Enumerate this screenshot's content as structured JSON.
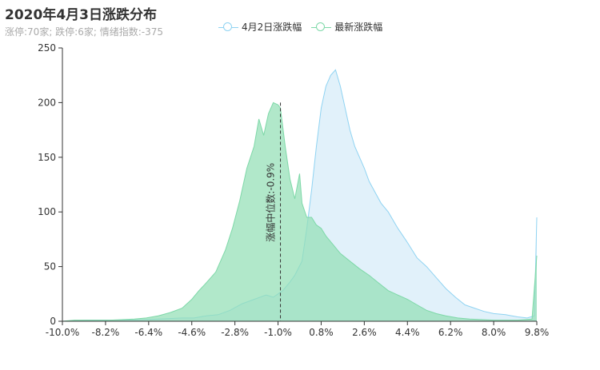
{
  "title": "2020年4月3日涨跌分布",
  "subtitle": "涨停:70家; 跌停:6家; 情绪指数:-375",
  "colors": {
    "series1": "#8fd3f2",
    "series1_fill": "#dff0fa",
    "series2": "#7ed8a8",
    "series2_fill": "#93dfb5",
    "axis": "#333333"
  },
  "chart_data": {
    "type": "area",
    "title": "2020年4月3日涨跌分布",
    "xlabel": "",
    "ylabel": "",
    "xlim": [
      -10.0,
      9.8
    ],
    "ylim": [
      0,
      250
    ],
    "x_ticks": [
      "-10.0%",
      "-8.2%",
      "-6.4%",
      "-4.6%",
      "-2.8%",
      "-1.0%",
      "0.8%",
      "2.6%",
      "4.4%",
      "6.2%",
      "8.0%",
      "9.8%"
    ],
    "x_tick_values": [
      -10.0,
      -8.2,
      -6.4,
      -4.6,
      -2.8,
      -1.0,
      0.8,
      2.6,
      4.4,
      6.2,
      8.0,
      9.8
    ],
    "y_ticks": [
      "0",
      "50",
      "100",
      "150",
      "200",
      "250"
    ],
    "y_tick_values": [
      0,
      50,
      100,
      150,
      200,
      250
    ],
    "legend_position": "top-center",
    "series": [
      {
        "name": "4月2日涨跌幅",
        "points": [
          [
            -10.0,
            0
          ],
          [
            -9.0,
            1
          ],
          [
            -8.0,
            1
          ],
          [
            -7.0,
            1
          ],
          [
            -6.0,
            2
          ],
          [
            -5.0,
            3
          ],
          [
            -4.5,
            3
          ],
          [
            -4.0,
            5
          ],
          [
            -3.5,
            6
          ],
          [
            -3.0,
            10
          ],
          [
            -2.5,
            16
          ],
          [
            -2.0,
            20
          ],
          [
            -1.5,
            24
          ],
          [
            -1.2,
            22
          ],
          [
            -0.8,
            28
          ],
          [
            -0.5,
            36
          ],
          [
            -0.3,
            42
          ],
          [
            0.0,
            55
          ],
          [
            0.2,
            85
          ],
          [
            0.4,
            120
          ],
          [
            0.6,
            160
          ],
          [
            0.8,
            195
          ],
          [
            1.0,
            215
          ],
          [
            1.2,
            225
          ],
          [
            1.4,
            230
          ],
          [
            1.6,
            215
          ],
          [
            1.8,
            195
          ],
          [
            2.0,
            175
          ],
          [
            2.2,
            160
          ],
          [
            2.4,
            150
          ],
          [
            2.6,
            140
          ],
          [
            2.8,
            128
          ],
          [
            3.0,
            120
          ],
          [
            3.3,
            108
          ],
          [
            3.6,
            100
          ],
          [
            4.0,
            85
          ],
          [
            4.4,
            72
          ],
          [
            4.8,
            58
          ],
          [
            5.2,
            50
          ],
          [
            5.6,
            40
          ],
          [
            6.0,
            30
          ],
          [
            6.4,
            22
          ],
          [
            6.8,
            15
          ],
          [
            7.2,
            12
          ],
          [
            7.6,
            9
          ],
          [
            8.0,
            7
          ],
          [
            8.5,
            6
          ],
          [
            9.0,
            4
          ],
          [
            9.4,
            3
          ],
          [
            9.7,
            5
          ],
          [
            9.8,
            95
          ]
        ]
      },
      {
        "name": "最新涨跌幅",
        "points": [
          [
            -10.0,
            0
          ],
          [
            -9.5,
            1
          ],
          [
            -9.0,
            1
          ],
          [
            -8.0,
            1
          ],
          [
            -7.0,
            2
          ],
          [
            -6.5,
            3
          ],
          [
            -6.0,
            5
          ],
          [
            -5.5,
            8
          ],
          [
            -5.0,
            12
          ],
          [
            -4.6,
            20
          ],
          [
            -4.3,
            28
          ],
          [
            -4.0,
            35
          ],
          [
            -3.6,
            45
          ],
          [
            -3.2,
            65
          ],
          [
            -2.9,
            85
          ],
          [
            -2.6,
            110
          ],
          [
            -2.3,
            140
          ],
          [
            -2.0,
            160
          ],
          [
            -1.8,
            185
          ],
          [
            -1.6,
            170
          ],
          [
            -1.4,
            190
          ],
          [
            -1.2,
            200
          ],
          [
            -1.0,
            198
          ],
          [
            -0.9,
            195
          ],
          [
            -0.7,
            160
          ],
          [
            -0.5,
            130
          ],
          [
            -0.3,
            112
          ],
          [
            -0.1,
            135
          ],
          [
            0.0,
            108
          ],
          [
            0.2,
            95
          ],
          [
            0.4,
            95
          ],
          [
            0.6,
            88
          ],
          [
            0.8,
            85
          ],
          [
            1.0,
            78
          ],
          [
            1.3,
            70
          ],
          [
            1.6,
            62
          ],
          [
            2.0,
            55
          ],
          [
            2.4,
            48
          ],
          [
            2.8,
            42
          ],
          [
            3.2,
            35
          ],
          [
            3.6,
            28
          ],
          [
            4.0,
            24
          ],
          [
            4.4,
            20
          ],
          [
            4.8,
            15
          ],
          [
            5.2,
            10
          ],
          [
            5.6,
            7
          ],
          [
            6.0,
            5
          ],
          [
            6.5,
            3
          ],
          [
            7.0,
            2
          ],
          [
            8.0,
            1
          ],
          [
            9.0,
            1
          ],
          [
            9.6,
            2
          ],
          [
            9.8,
            60
          ]
        ]
      }
    ],
    "annotation": {
      "label": "涨幅中位数:-0.9%",
      "x": -0.9
    }
  }
}
